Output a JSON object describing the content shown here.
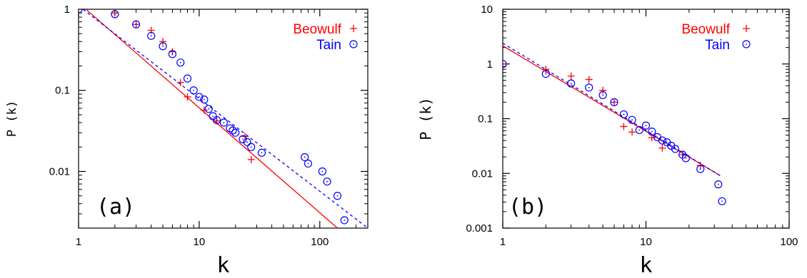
{
  "chart_data": [
    {
      "type": "scatter",
      "panel_label": "(a)",
      "xlabel": "k",
      "ylabel": "P (k)",
      "x_scale": "log",
      "y_scale": "log",
      "xlim": [
        1,
        250
      ],
      "ylim": [
        0.002,
        1
      ],
      "x_ticks": [
        {
          "value": 1,
          "label": "1"
        },
        {
          "value": 10,
          "label": "10"
        },
        {
          "value": 100,
          "label": "100"
        }
      ],
      "y_ticks": [
        {
          "value": 1,
          "label": "1"
        },
        {
          "value": 0.1,
          "label": "0.1"
        },
        {
          "value": 0.01,
          "label": "0.01"
        }
      ],
      "legend_position": "top-right",
      "series": [
        {
          "name": "Beowulf",
          "marker": "plus",
          "color": "#ff0000",
          "points": [
            [
              1,
              1
            ],
            [
              2,
              0.9
            ],
            [
              3,
              0.65
            ],
            [
              4,
              0.55
            ],
            [
              5,
              0.4
            ],
            [
              6,
              0.3
            ],
            [
              7,
              0.125
            ],
            [
              8,
              0.083
            ],
            [
              11,
              0.057
            ],
            [
              14,
              0.042
            ],
            [
              24,
              0.027
            ],
            [
              27,
              0.014
            ]
          ],
          "fit": {
            "from": [
              1,
              1.2
            ],
            "to": [
              140,
              0.002
            ],
            "style": "solid"
          }
        },
        {
          "name": "Tain",
          "marker": "circle",
          "color": "#0000ff",
          "points": [
            [
              1,
              1
            ],
            [
              2,
              0.87
            ],
            [
              3,
              0.65
            ],
            [
              4,
              0.47
            ],
            [
              5,
              0.35
            ],
            [
              6,
              0.28
            ],
            [
              7,
              0.22
            ],
            [
              8,
              0.14
            ],
            [
              9,
              0.1
            ],
            [
              10,
              0.083
            ],
            [
              11,
              0.077
            ],
            [
              12,
              0.059
            ],
            [
              13,
              0.048
            ],
            [
              14,
              0.043
            ],
            [
              16,
              0.04
            ],
            [
              18,
              0.034
            ],
            [
              19,
              0.032
            ],
            [
              20,
              0.03
            ],
            [
              23,
              0.025
            ],
            [
              25,
              0.023
            ],
            [
              27,
              0.02
            ],
            [
              33,
              0.017
            ],
            [
              75,
              0.015
            ],
            [
              80,
              0.0125
            ],
            [
              105,
              0.01
            ],
            [
              115,
              0.0075
            ],
            [
              140,
              0.005
            ],
            [
              160,
              0.0025
            ]
          ],
          "fit": {
            "from": [
              1,
              1.1
            ],
            "to": [
              250,
              0.002
            ],
            "style": "dashed"
          }
        }
      ]
    },
    {
      "type": "scatter",
      "panel_label": "(b)",
      "xlabel": "k",
      "ylabel": "P (k)",
      "x_scale": "log",
      "y_scale": "log",
      "xlim": [
        1,
        100
      ],
      "ylim": [
        0.001,
        10
      ],
      "x_ticks": [
        {
          "value": 1,
          "label": "1"
        },
        {
          "value": 10,
          "label": "10"
        },
        {
          "value": 100,
          "label": "100"
        }
      ],
      "y_ticks": [
        {
          "value": 10,
          "label": "10"
        },
        {
          "value": 1,
          "label": "1"
        },
        {
          "value": 0.1,
          "label": "0.1"
        },
        {
          "value": 0.01,
          "label": "0.01"
        },
        {
          "value": 0.001,
          "label": "0.001"
        }
      ],
      "legend_position": "top-right",
      "series": [
        {
          "name": "Beowulf",
          "marker": "plus",
          "color": "#ff0000",
          "points": [
            [
              1,
              1
            ],
            [
              2,
              0.8
            ],
            [
              3,
              0.6
            ],
            [
              4,
              0.52
            ],
            [
              5,
              0.33
            ],
            [
              6,
              0.2
            ],
            [
              7,
              0.072
            ],
            [
              8,
              0.057
            ],
            [
              11,
              0.045
            ],
            [
              13,
              0.029
            ],
            [
              18,
              0.022
            ],
            [
              24,
              0.014
            ]
          ],
          "fit": {
            "from": [
              1,
              2.15
            ],
            "to": [
              33,
              0.0091
            ],
            "style": "solid"
          }
        },
        {
          "name": "Tain",
          "marker": "circle",
          "color": "#0000ff",
          "points": [
            [
              1,
              1
            ],
            [
              2,
              0.66
            ],
            [
              3,
              0.44
            ],
            [
              4,
              0.37
            ],
            [
              5,
              0.27
            ],
            [
              6,
              0.2
            ],
            [
              7,
              0.12
            ],
            [
              8,
              0.095
            ],
            [
              9,
              0.062
            ],
            [
              10,
              0.075
            ],
            [
              11,
              0.058
            ],
            [
              12,
              0.046
            ],
            [
              13,
              0.04
            ],
            [
              14,
              0.037
            ],
            [
              15,
              0.032
            ],
            [
              16,
              0.028
            ],
            [
              18,
              0.022
            ],
            [
              19,
              0.019
            ],
            [
              24,
              0.012
            ],
            [
              32,
              0.0063
            ],
            [
              34,
              0.0031
            ]
          ],
          "fit": {
            "from": [
              1,
              2.4
            ],
            "to": [
              33,
              0.0091
            ],
            "style": "dashed"
          }
        }
      ]
    }
  ]
}
